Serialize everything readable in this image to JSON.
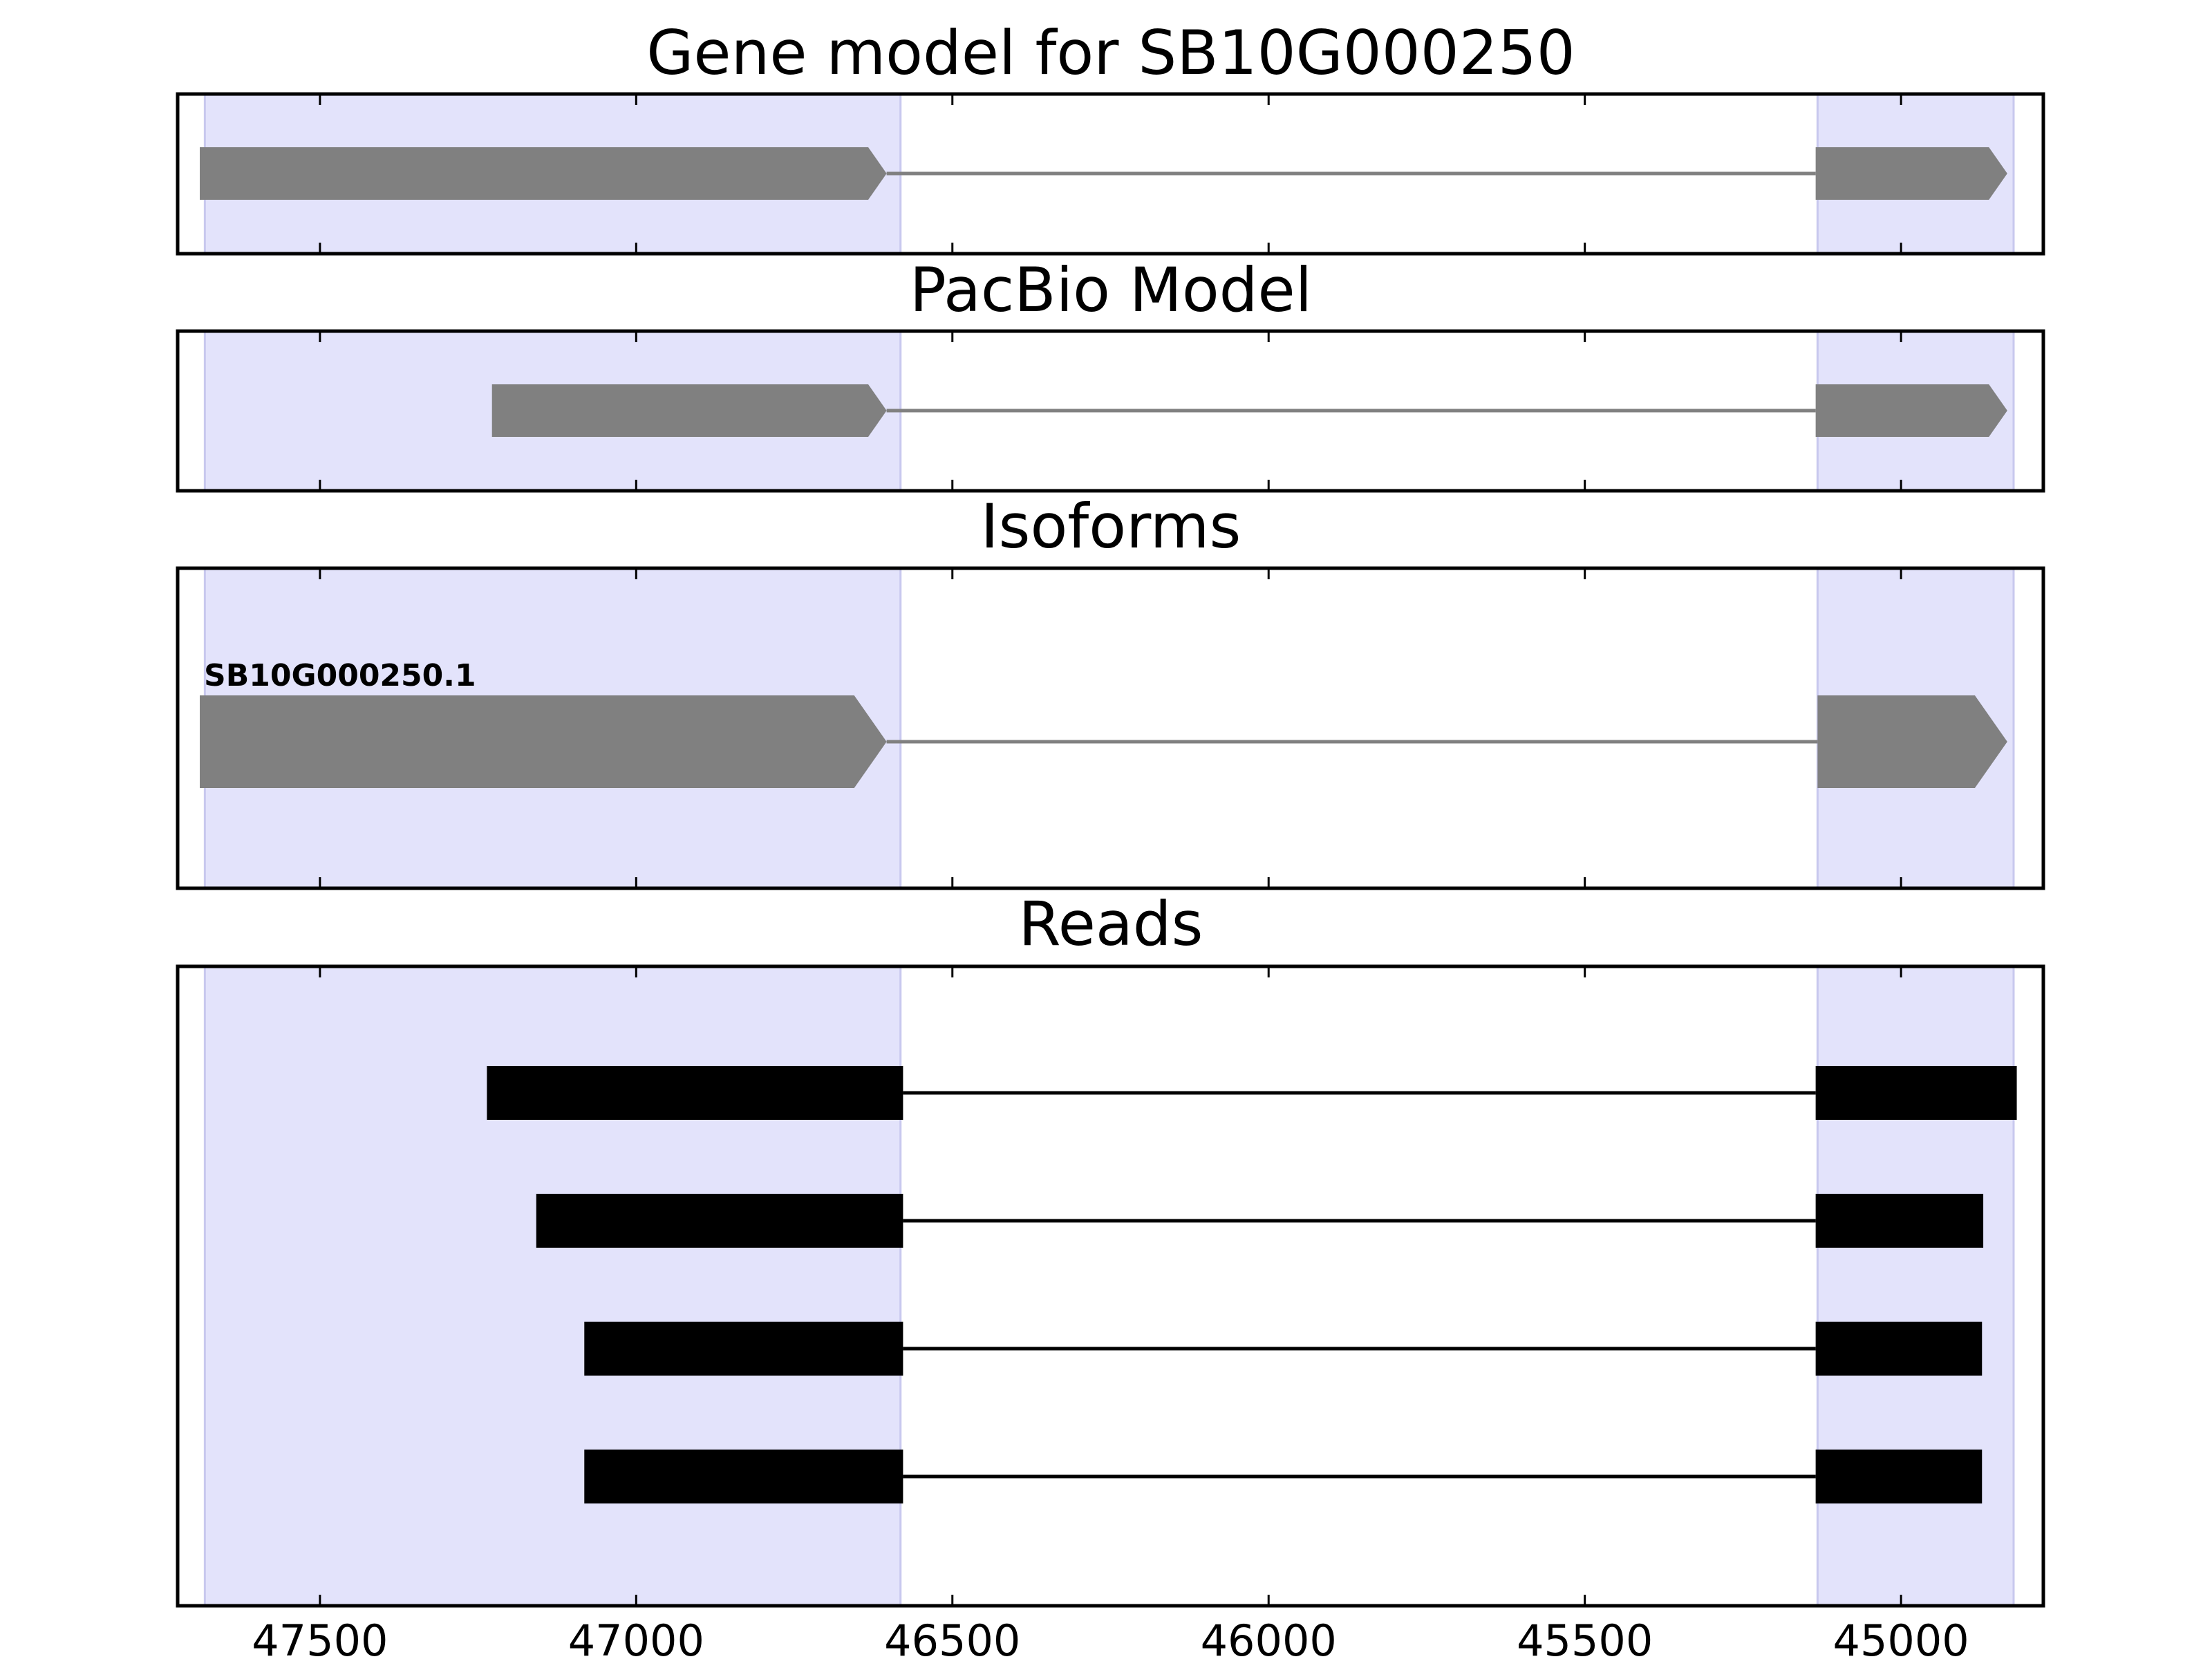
{
  "colors": {
    "exon_region_fill": "#e3e3fb",
    "exon_region_edge": "#c8c8ee",
    "model_fill": "#808080",
    "model_intron": "#808080",
    "read_fill": "#000000",
    "read_intron": "#000000"
  },
  "chart_data": {
    "type": "gene-model",
    "x_axis": {
      "reversed": true,
      "xlim": [
        47725,
        44775
      ],
      "ticks": [
        47500,
        47000,
        46500,
        46000,
        45500,
        45000
      ],
      "tick_labels": [
        "47500",
        "47000",
        "46500",
        "46000",
        "45500",
        "45000"
      ]
    },
    "exon_regions": [
      [
        47682,
        46582
      ],
      [
        45132,
        44822
      ]
    ],
    "panels": [
      {
        "title": "Gene model for SB10G000250",
        "kind": "model",
        "features": [
          {
            "exons": [
              [
                47690,
                46604
              ],
              [
                45135,
                44832
              ]
            ],
            "strand": "-",
            "label": ""
          }
        ]
      },
      {
        "title": "PacBio Model",
        "kind": "model",
        "features": [
          {
            "exons": [
              [
                47228,
                46604
              ],
              [
                45135,
                44832
              ]
            ],
            "strand": "-",
            "label": ""
          }
        ]
      },
      {
        "title": "Isoforms",
        "kind": "isoform",
        "features": [
          {
            "exons": [
              [
                47690,
                46604
              ],
              [
                45132,
                44832
              ]
            ],
            "strand": "-",
            "label": "SB10G000250.1"
          }
        ]
      },
      {
        "title": "Reads",
        "kind": "reads",
        "features": [
          {
            "exons": [
              [
                47236,
                46578
              ],
              [
                45135,
                44817
              ]
            ]
          },
          {
            "exons": [
              [
                47158,
                46578
              ],
              [
                45135,
                44870
              ]
            ]
          },
          {
            "exons": [
              [
                47082,
                46578
              ],
              [
                45135,
                44872
              ]
            ]
          },
          {
            "exons": [
              [
                47082,
                46578
              ],
              [
                45135,
                44872
              ]
            ]
          }
        ]
      }
    ]
  }
}
